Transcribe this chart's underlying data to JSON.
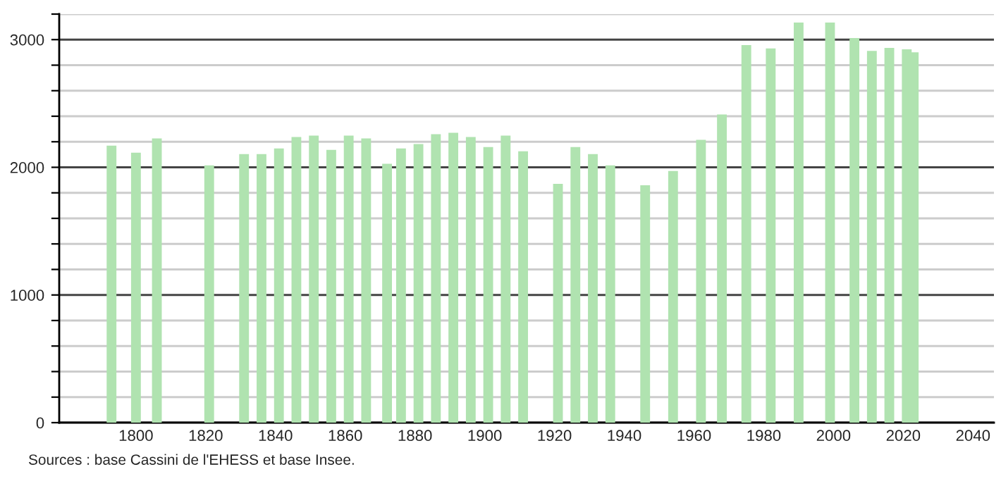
{
  "chart_data": {
    "type": "bar",
    "x": [
      1793,
      1800,
      1806,
      1821,
      1831,
      1836,
      1841,
      1846,
      1851,
      1856,
      1861,
      1866,
      1872,
      1876,
      1881,
      1886,
      1891,
      1896,
      1901,
      1906,
      1911,
      1921,
      1926,
      1931,
      1936,
      1946,
      1954,
      1962,
      1968,
      1975,
      1982,
      1990,
      1999,
      2006,
      2011,
      2016,
      2021,
      2023
    ],
    "values": [
      2170,
      2115,
      2226,
      2015,
      2104,
      2104,
      2148,
      2237,
      2248,
      2137,
      2248,
      2226,
      2027,
      2148,
      2182,
      2259,
      2270,
      2237,
      2159,
      2248,
      2126,
      1871,
      2159,
      2104,
      2015,
      1860,
      1971,
      2215,
      2414,
      2957,
      2931,
      3134,
      3134,
      3012,
      2912,
      2935,
      2924,
      2901
    ],
    "color": "#b0e3b0",
    "xlim": [
      1778,
      2046
    ],
    "xticks": [
      1800,
      1820,
      1840,
      1860,
      1880,
      1900,
      1920,
      1940,
      1960,
      1980,
      2000,
      2020,
      2040
    ],
    "ylim": [
      0,
      3200
    ],
    "yticks": [
      0,
      {
        "value": 200,
        "label": null
      },
      {
        "value": 400,
        "label": null
      },
      {
        "value": 600,
        "label": null
      },
      {
        "value": 800,
        "label": null
      },
      1000,
      {
        "value": 1200,
        "label": null
      },
      {
        "value": 1400,
        "label": null
      },
      {
        "value": 1600,
        "label": null
      },
      {
        "value": 1800,
        "label": null
      },
      2000,
      {
        "value": 2200,
        "label": null
      },
      {
        "value": 2400,
        "label": null
      },
      {
        "value": 2600,
        "label": null
      },
      {
        "value": 2800,
        "label": null
      },
      3000,
      {
        "value": 3200,
        "label": null
      }
    ],
    "grid": "y",
    "annotations": [
      "Sources : base Cassini de l'EHESS et base Insee."
    ]
  }
}
